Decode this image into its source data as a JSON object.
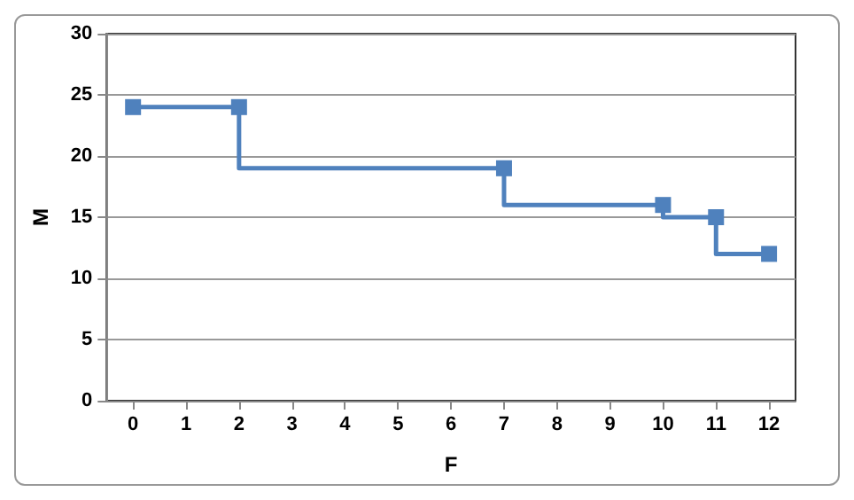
{
  "chart_data": {
    "type": "step",
    "xlabel": "F",
    "ylabel": "M",
    "x": [
      0,
      2,
      7,
      10,
      11,
      12
    ],
    "series": [
      {
        "color": "#4f81bd",
        "values": [
          24,
          24,
          19,
          16,
          15,
          12
        ]
      }
    ],
    "xlim": [
      -0.5,
      12.5
    ],
    "xticks": [
      0,
      1,
      2,
      3,
      4,
      5,
      6,
      7,
      8,
      9,
      10,
      11,
      12
    ],
    "ylim": [
      0,
      30
    ],
    "yticks": [
      0,
      5,
      10,
      15,
      20,
      25,
      30
    ],
    "grid": "y",
    "marker": "square",
    "line_style": "solid"
  }
}
